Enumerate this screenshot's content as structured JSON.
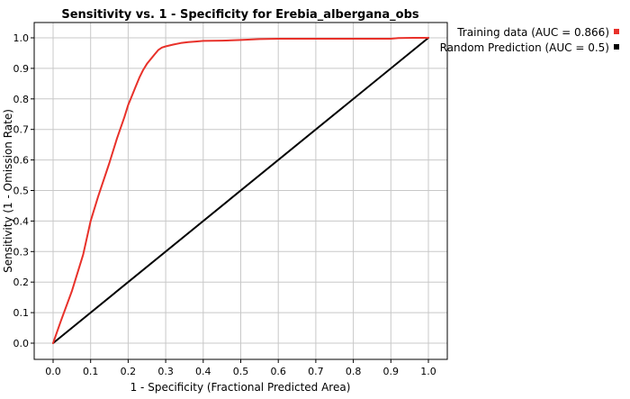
{
  "chart_data": {
    "type": "line",
    "title": "Sensitivity vs. 1 - Specificity for Erebia_albergana_obs",
    "xlabel": "1 - Specificity  (Fractional Predicted Area)",
    "ylabel": "Sensitivity  (1 - Omission Rate)",
    "xlim": [
      0,
      1
    ],
    "ylim": [
      0,
      1
    ],
    "grid": true,
    "legend_position": "top-right outside plot",
    "x_ticks": [
      "0.0",
      "0.1",
      "0.2",
      "0.3",
      "0.4",
      "0.5",
      "0.6",
      "0.7",
      "0.8",
      "0.9",
      "1.0"
    ],
    "y_ticks": [
      "0.0",
      "0.1",
      "0.2",
      "0.3",
      "0.4",
      "0.5",
      "0.6",
      "0.7",
      "0.8",
      "0.9",
      "1.0"
    ],
    "series": [
      {
        "name": "Training data (AUC = 0.866)",
        "color": "#e8312a",
        "x": [
          0.0,
          0.02,
          0.05,
          0.08,
          0.1,
          0.12,
          0.15,
          0.17,
          0.19,
          0.2,
          0.21,
          0.22,
          0.23,
          0.24,
          0.25,
          0.26,
          0.27,
          0.28,
          0.29,
          0.3,
          0.32,
          0.34,
          0.36,
          0.38,
          0.4,
          0.45,
          0.5,
          0.55,
          0.6,
          0.7,
          0.8,
          0.9,
          0.92,
          0.96,
          1.0
        ],
        "y": [
          0.0,
          0.07,
          0.17,
          0.29,
          0.4,
          0.48,
          0.59,
          0.67,
          0.74,
          0.78,
          0.81,
          0.84,
          0.87,
          0.895,
          0.915,
          0.93,
          0.945,
          0.96,
          0.968,
          0.972,
          0.978,
          0.983,
          0.986,
          0.988,
          0.99,
          0.991,
          0.993,
          0.996,
          0.997,
          0.997,
          0.997,
          0.997,
          0.999,
          1.0,
          1.0
        ]
      },
      {
        "name": "Random Prediction (AUC = 0.5)",
        "color": "#000000",
        "x": [
          0.0,
          1.0
        ],
        "y": [
          0.0,
          1.0
        ]
      }
    ]
  }
}
